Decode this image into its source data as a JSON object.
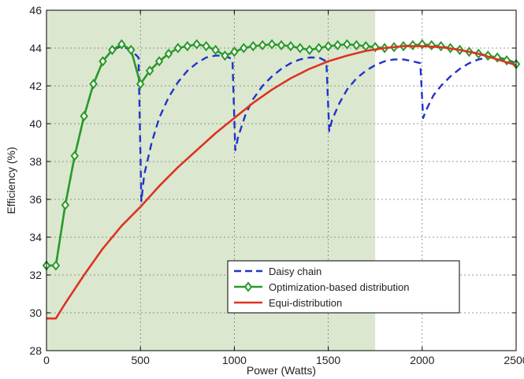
{
  "chart_data": {
    "type": "line",
    "title": "",
    "xlabel": "Power (Watts)",
    "ylabel": "Efficiency (%)",
    "xlim": [
      0,
      2500
    ],
    "ylim": [
      28,
      46
    ],
    "xticks": [
      0,
      500,
      1000,
      1500,
      2000,
      2500
    ],
    "yticks": [
      28,
      30,
      32,
      34,
      36,
      38,
      40,
      42,
      44,
      46
    ],
    "grid": true,
    "shaded_region": {
      "x_from": 0,
      "x_to": 1750,
      "color": "#dbe8cf"
    },
    "legend_position": "bottom-center",
    "series": [
      {
        "name": "Daisy chain",
        "color": "#2233cc",
        "style": "dashed",
        "marker": "none",
        "x": [
          0,
          50,
          100,
          150,
          200,
          250,
          300,
          350,
          400,
          450,
          490,
          505,
          520,
          560,
          600,
          650,
          700,
          750,
          800,
          850,
          900,
          950,
          990,
          1005,
          1020,
          1060,
          1100,
          1150,
          1200,
          1250,
          1300,
          1350,
          1400,
          1450,
          1490,
          1505,
          1520,
          1560,
          1600,
          1650,
          1700,
          1750,
          1800,
          1850,
          1900,
          1950,
          1990,
          2005,
          2020,
          2060,
          2100,
          2150,
          2200,
          2250,
          2300,
          2350,
          2400,
          2450,
          2500
        ],
        "y": [
          32.5,
          32.5,
          35.7,
          38.3,
          40.4,
          42.1,
          43.3,
          43.9,
          44.1,
          43.9,
          43.5,
          35.9,
          37.3,
          39.0,
          40.3,
          41.4,
          42.2,
          42.8,
          43.2,
          43.5,
          43.6,
          43.6,
          43.4,
          38.6,
          39.3,
          40.5,
          41.3,
          42.0,
          42.5,
          42.9,
          43.2,
          43.4,
          43.5,
          43.5,
          43.3,
          39.6,
          40.2,
          41.1,
          41.8,
          42.4,
          42.8,
          43.1,
          43.3,
          43.4,
          43.4,
          43.3,
          43.2,
          40.3,
          40.7,
          41.5,
          42.0,
          42.5,
          42.9,
          43.2,
          43.4,
          43.5,
          43.5,
          43.4,
          43.2
        ]
      },
      {
        "name": "Optimization-based distribution",
        "color": "#2a9a2a",
        "style": "solid",
        "marker": "diamond",
        "x": [
          0,
          50,
          100,
          150,
          200,
          250,
          300,
          350,
          400,
          450,
          500,
          550,
          600,
          650,
          700,
          750,
          800,
          850,
          900,
          950,
          1000,
          1050,
          1100,
          1150,
          1200,
          1250,
          1300,
          1350,
          1400,
          1450,
          1500,
          1550,
          1600,
          1650,
          1700,
          1750,
          1800,
          1850,
          1900,
          1950,
          2000,
          2050,
          2100,
          2150,
          2200,
          2250,
          2300,
          2350,
          2400,
          2450,
          2500
        ],
        "y": [
          32.5,
          32.5,
          35.7,
          38.3,
          40.4,
          42.1,
          43.3,
          43.9,
          44.2,
          43.9,
          42.1,
          42.8,
          43.3,
          43.7,
          44.0,
          44.1,
          44.2,
          44.1,
          43.9,
          43.6,
          43.8,
          44.0,
          44.1,
          44.15,
          44.2,
          44.15,
          44.1,
          44.0,
          43.9,
          44.0,
          44.1,
          44.15,
          44.2,
          44.15,
          44.1,
          44.05,
          44.0,
          44.05,
          44.1,
          44.15,
          44.2,
          44.15,
          44.1,
          44.0,
          43.9,
          43.8,
          43.7,
          43.6,
          43.5,
          43.35,
          43.15
        ]
      },
      {
        "name": "Equi-distribution",
        "color": "#dd3322",
        "style": "solid",
        "marker": "none",
        "x": [
          0,
          50,
          100,
          200,
          300,
          400,
          500,
          600,
          700,
          800,
          900,
          1000,
          1100,
          1200,
          1300,
          1400,
          1500,
          1600,
          1700,
          1800,
          1900,
          2000,
          2100,
          2200,
          2300,
          2400,
          2500
        ],
        "y": [
          29.7,
          29.7,
          30.5,
          32.0,
          33.4,
          34.6,
          35.6,
          36.7,
          37.7,
          38.6,
          39.5,
          40.3,
          41.1,
          41.8,
          42.4,
          42.9,
          43.3,
          43.6,
          43.85,
          44.0,
          44.1,
          44.1,
          44.05,
          43.9,
          43.7,
          43.4,
          43.1
        ]
      }
    ]
  }
}
